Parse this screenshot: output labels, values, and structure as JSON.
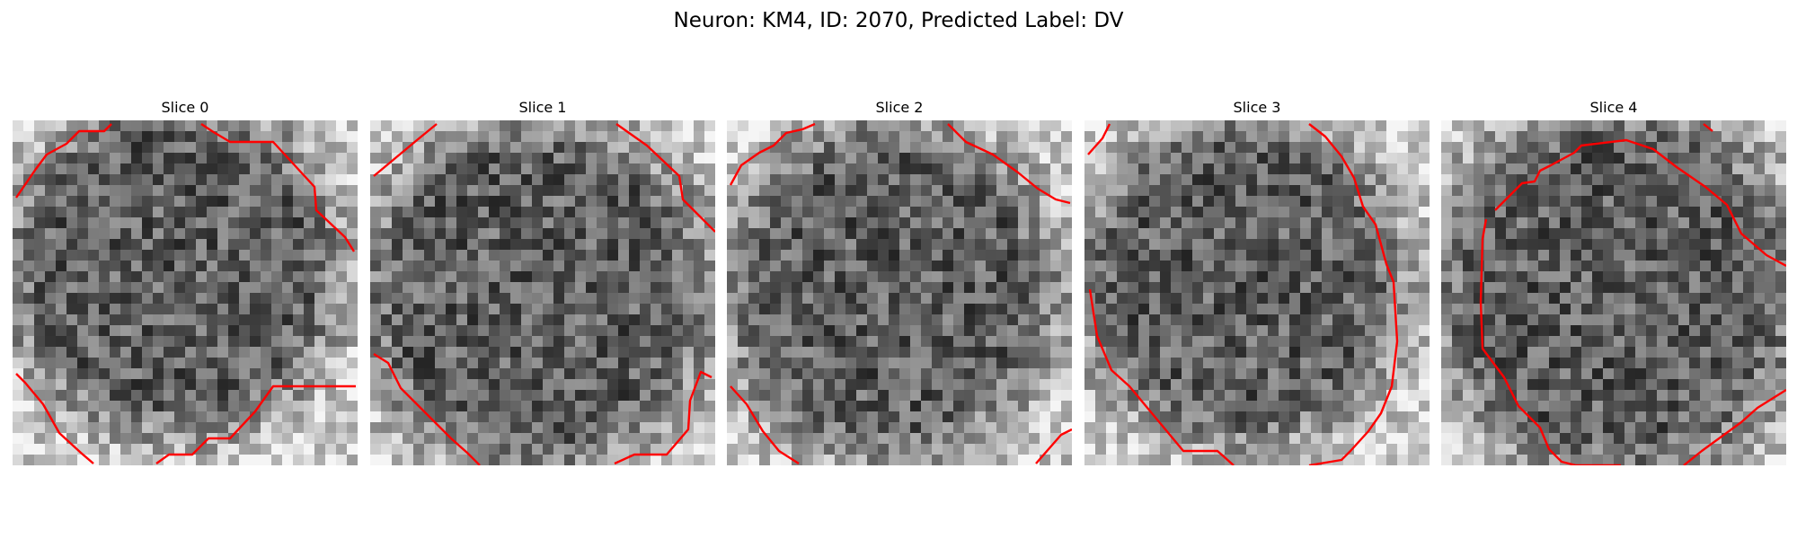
{
  "figure": {
    "title": "Neuron: KM4, ID: 2070, Predicted Label: DV"
  },
  "panels": [
    {
      "title": "Slice 0"
    },
    {
      "title": "Slice 1"
    },
    {
      "title": "Slice 2"
    },
    {
      "title": "Slice 3"
    },
    {
      "title": "Slice 4"
    }
  ],
  "colors": {
    "contour": "#ff0000",
    "background": "#ffffff"
  }
}
